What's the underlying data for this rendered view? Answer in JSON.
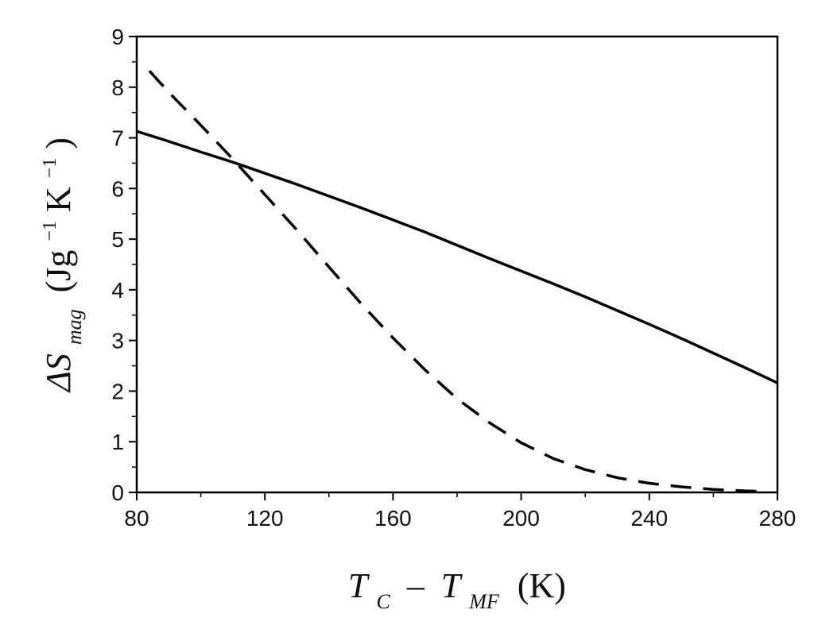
{
  "chart_data": {
    "type": "line",
    "xlabel": {
      "main_T1": "T",
      "sub_1": "C",
      "minus": "–",
      "main_T2": "T",
      "sub_2": "MF",
      "unit": "(K)"
    },
    "ylabel": {
      "delta_S": "ΔS",
      "sub": "mag",
      "unit_open": "(Jg",
      "sup_1": "−1",
      "unit_K": " K",
      "sup_2": "−1",
      "unit_close": ")"
    },
    "xlim": [
      80,
      280
    ],
    "ylim": [
      0,
      9
    ],
    "xticks": [
      "80",
      "120",
      "160",
      "200",
      "240",
      "280"
    ],
    "yticks": [
      "0",
      "1",
      "2",
      "3",
      "4",
      "5",
      "6",
      "7",
      "8",
      "9"
    ],
    "grid": false,
    "series": [
      {
        "style": "solid",
        "color": "#000000",
        "x": [
          80,
          90,
          100,
          110,
          120,
          130,
          140,
          150,
          160,
          170,
          180,
          190,
          200,
          210,
          220,
          230,
          240,
          250,
          260,
          270,
          280
        ],
        "y": [
          7.13,
          6.93,
          6.72,
          6.52,
          6.3,
          6.08,
          5.85,
          5.62,
          5.38,
          5.14,
          4.88,
          4.62,
          4.37,
          4.12,
          3.86,
          3.59,
          3.32,
          3.04,
          2.75,
          2.46,
          2.16
        ]
      },
      {
        "style": "dashed",
        "color": "#000000",
        "x": [
          84,
          90,
          100,
          110,
          120,
          130,
          140,
          150,
          160,
          170,
          180,
          190,
          200,
          210,
          220,
          230,
          240,
          250,
          260,
          270,
          276
        ],
        "y": [
          8.32,
          7.9,
          7.25,
          6.58,
          5.88,
          5.18,
          4.45,
          3.73,
          3.05,
          2.42,
          1.85,
          1.38,
          0.98,
          0.67,
          0.45,
          0.29,
          0.18,
          0.11,
          0.06,
          0.03,
          0.02
        ]
      }
    ]
  }
}
